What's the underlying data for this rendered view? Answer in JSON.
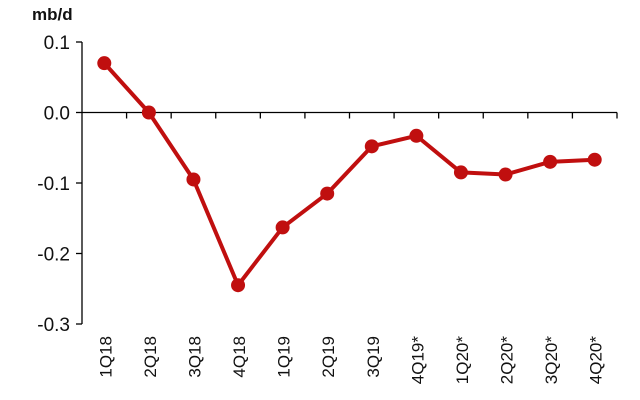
{
  "chart_data": {
    "type": "line",
    "ylabel": "mb/d",
    "xlabel": "",
    "categories": [
      "1Q18",
      "2Q18",
      "3Q18",
      "4Q18",
      "1Q19",
      "2Q19",
      "3Q19",
      "4Q19*",
      "1Q20*",
      "2Q20*",
      "3Q20*",
      "4Q20*"
    ],
    "series": [
      {
        "values": [
          0.07,
          0.0,
          -0.095,
          -0.245,
          -0.163,
          -0.115,
          -0.048,
          -0.033,
          -0.085,
          -0.088,
          -0.07,
          -0.067
        ],
        "color": "#c00f0f"
      }
    ],
    "ylim": [
      -0.3,
      0.1
    ],
    "yticks": [
      "0.1",
      "0.0",
      "-0.1",
      "-0.2",
      "-0.3"
    ],
    "grid": false,
    "legend": "none"
  }
}
